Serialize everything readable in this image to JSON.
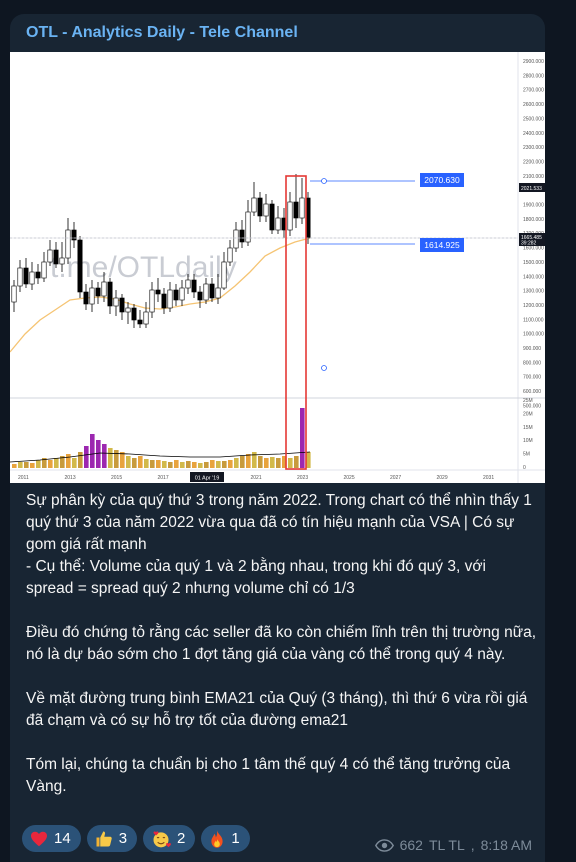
{
  "channel": {
    "name": "OTL - Analytics Daily - Tele Channel"
  },
  "chart": {
    "watermark": "t.me/OTLdaily",
    "price_axis": [
      "2900.000",
      "2800.000",
      "2700.000",
      "2600.000",
      "2500.000",
      "2400.000",
      "2300.000",
      "2200.000",
      "2100.000",
      "2000.000",
      "1900.000",
      "1800.000",
      "1700.000",
      "1600.000",
      "1500.000",
      "1400.000",
      "1300.000",
      "1200.000",
      "1100.000",
      "1000.000",
      "900.000",
      "800.000",
      "700.000",
      "600.000",
      "500.000"
    ],
    "volume_axis": [
      "25M",
      "20M",
      "15M",
      "10M",
      "5M",
      "0"
    ],
    "time_axis": [
      "2011",
      "2013",
      "2015",
      "2017",
      "2019",
      "2021",
      "2023",
      "2025",
      "2027",
      "2029",
      "2031"
    ],
    "crosshair_date": "01 Apr '19",
    "level_upper": "2070.630",
    "level_lower": "1614.925",
    "current_price": "1665.485",
    "current_price_sub": "39:282",
    "last_high_label": "2021.533",
    "colors": {
      "up": "#ffffff",
      "down": "#000000",
      "ema": "#f5c473",
      "level_line": "#2962ff",
      "highlight": "#e53935",
      "volume": "#9c27b0"
    }
  },
  "message": {
    "p1": "Sự phân kỳ của quý thứ 3 trong năm 2022. Trong chart có thể nhìn thấy 1 quý thứ 3 của năm 2022 vừa qua đã có tín hiệu mạnh của VSA | Có sự gom giá rất mạnh",
    "p2": "- Cụ thể: Volume của quý 1 và 2 bằng nhau, trong khi đó quý 3, với spread = spread quý 2 nhưng volume chỉ có 1/3",
    "p3": "Điều đó chứng tỏ rằng các seller đã ko còn chiếm lĩnh trên thị trường nữa, nó là dự báo sớm cho 1 đợt tăng giá của vàng có thể trong quý 4 này.",
    "p4": "Về mặt đường trung bình EMA21 của Quý (3 tháng), thì thứ 6 vừa rồi giá đã chạm và có sự hỗ trợ tốt của đường ema21",
    "p5": "Tóm lại, chúng ta chuẩn bị cho 1 tâm thế quý 4 có thể tăng trưởng của Vàng."
  },
  "reactions": [
    {
      "icon": "heart-icon",
      "count": "14"
    },
    {
      "icon": "thumbs-up-icon",
      "count": "3"
    },
    {
      "icon": "smiling-face-with-hearts-icon",
      "count": "2"
    },
    {
      "icon": "fire-icon",
      "count": "1"
    }
  ],
  "meta": {
    "views": "662",
    "author": "TL TL",
    "time": "8:18 AM"
  }
}
